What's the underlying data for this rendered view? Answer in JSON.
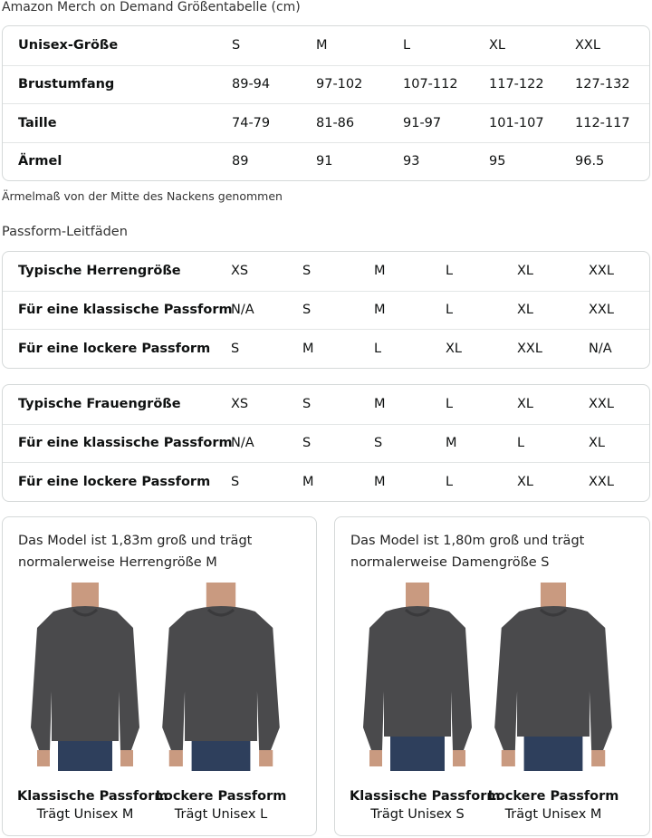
{
  "title": "Amazon Merch on Demand Größentabelle (cm)",
  "size_table": {
    "rows": [
      [
        "Unisex-Größe",
        "S",
        "M",
        "L",
        "XL",
        "XXL"
      ],
      [
        "Brustumfang",
        "89-94",
        "97-102",
        "107-112",
        "117-122",
        "127-132"
      ],
      [
        "Taille",
        "74-79",
        "81-86",
        "91-97",
        "101-107",
        "112-117"
      ],
      [
        "Ärmel",
        "89",
        "91",
        "93",
        "95",
        "96.5"
      ]
    ]
  },
  "note": "Ärmelmaß von der Mitte des Nackens genommen",
  "fit_guide_title": "Passform-Leitfäden",
  "men_table": {
    "rows": [
      [
        "Typische Herrengröße",
        "XS",
        "S",
        "M",
        "L",
        "XL",
        "XXL"
      ],
      [
        "Für eine klassische Passform",
        "N/A",
        "S",
        "M",
        "L",
        "XL",
        "XXL"
      ],
      [
        "Für eine lockere Passform",
        "S",
        "M",
        "L",
        "XL",
        "XXL",
        "N/A"
      ]
    ]
  },
  "women_table": {
    "rows": [
      [
        "Typische Frauengröße",
        "XS",
        "S",
        "M",
        "L",
        "XL",
        "XXL"
      ],
      [
        "Für eine klassische Passform",
        "N/A",
        "S",
        "S",
        "M",
        "L",
        "XL"
      ],
      [
        "Für eine lockere Passform",
        "S",
        "M",
        "M",
        "L",
        "XL",
        "XXL"
      ]
    ]
  },
  "cards": [
    {
      "desc": "Das Model ist 1,83m groß und trägt normalerweise Herrengröße M",
      "figures": [
        {
          "fit": "Klassische Passform",
          "wear": "Trägt Unisex M"
        },
        {
          "fit": "Lockere Passform",
          "wear": "Trägt Unisex L"
        }
      ]
    },
    {
      "desc": "Das Model ist 1,80m groß und trägt normalerweise Damengröße S",
      "figures": [
        {
          "fit": "Klassische Passform",
          "wear": "Trägt Unisex S"
        },
        {
          "fit": "Lockere Passform",
          "wear": "Trägt Unisex M"
        }
      ]
    }
  ],
  "colors": {
    "sweatshirt": "#4a4a4c",
    "jeans": "#2e3f5c",
    "skin": "#c99a80",
    "border": "#d5d9d9"
  }
}
